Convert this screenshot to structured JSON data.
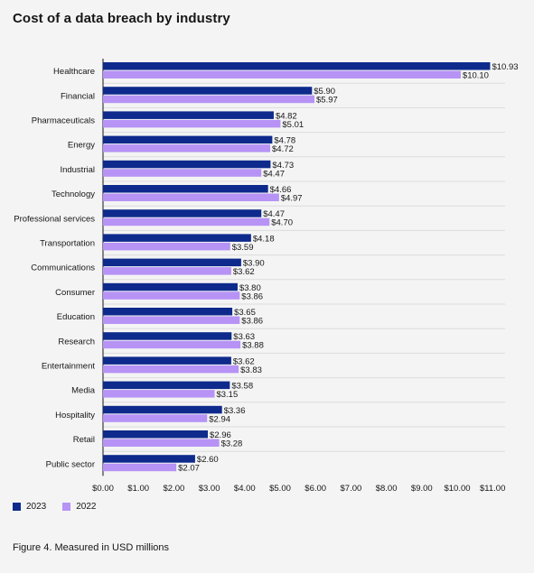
{
  "chart_data": {
    "type": "bar",
    "orientation": "horizontal",
    "title": "Cost of a data breach by industry",
    "categories": [
      "Healthcare",
      "Financial",
      "Pharmaceuticals",
      "Energy",
      "Industrial",
      "Technology",
      "Professional services",
      "Transportation",
      "Communications",
      "Consumer",
      "Education",
      "Research",
      "Entertainment",
      "Media",
      "Hospitality",
      "Retail",
      "Public sector"
    ],
    "series": [
      {
        "name": "2023",
        "color": "#0e2a8c",
        "values": [
          10.93,
          5.9,
          4.82,
          4.78,
          4.73,
          4.66,
          4.47,
          4.18,
          3.9,
          3.8,
          3.65,
          3.63,
          3.62,
          3.58,
          3.36,
          2.96,
          2.6
        ]
      },
      {
        "name": "2022",
        "color": "#b693f5",
        "values": [
          10.1,
          5.97,
          5.01,
          4.72,
          4.47,
          4.97,
          4.7,
          3.59,
          3.62,
          3.86,
          3.86,
          3.88,
          3.83,
          3.15,
          2.94,
          3.28,
          2.07
        ]
      }
    ],
    "xlim": [
      0,
      11
    ],
    "xticks": [
      "$0.00",
      "$1.00",
      "$2.00",
      "$3.00",
      "$4.00",
      "$5.00",
      "$6.00",
      "$7.00",
      "$8.00",
      "$9.00",
      "$10.00",
      "$11.00"
    ],
    "grid": true,
    "legend_position": "bottom-left",
    "caption": "Figure 4. Measured in USD millions"
  }
}
